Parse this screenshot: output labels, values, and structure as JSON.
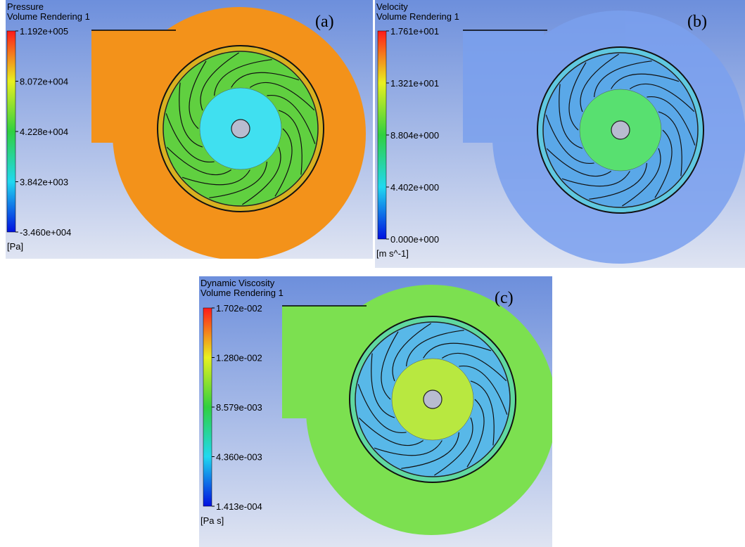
{
  "panels": [
    {
      "title": "Pressure",
      "subtitle": "Volume Rendering 1",
      "ticks": [
        "1.192e+005",
        "8.072e+004",
        "4.228e+004",
        "3.842e+003",
        "-3.460e+004"
      ],
      "unit": "[Pa]",
      "label": "(a)"
    },
    {
      "title": "Velocity",
      "subtitle": "Volume Rendering 1",
      "ticks": [
        "1.761e+001",
        "1.321e+001",
        "8.804e+000",
        "4.402e+000",
        "0.000e+000"
      ],
      "unit": "[m s^-1]",
      "label": "(b)"
    },
    {
      "title": "Dynamic Viscosity",
      "subtitle": "Volume Rendering 1",
      "ticks": [
        "1.702e-002",
        "1.280e-002",
        "8.579e-003",
        "4.360e-003",
        "1.413e-004"
      ],
      "unit": "[Pa s]",
      "label": "(c)"
    }
  ]
}
